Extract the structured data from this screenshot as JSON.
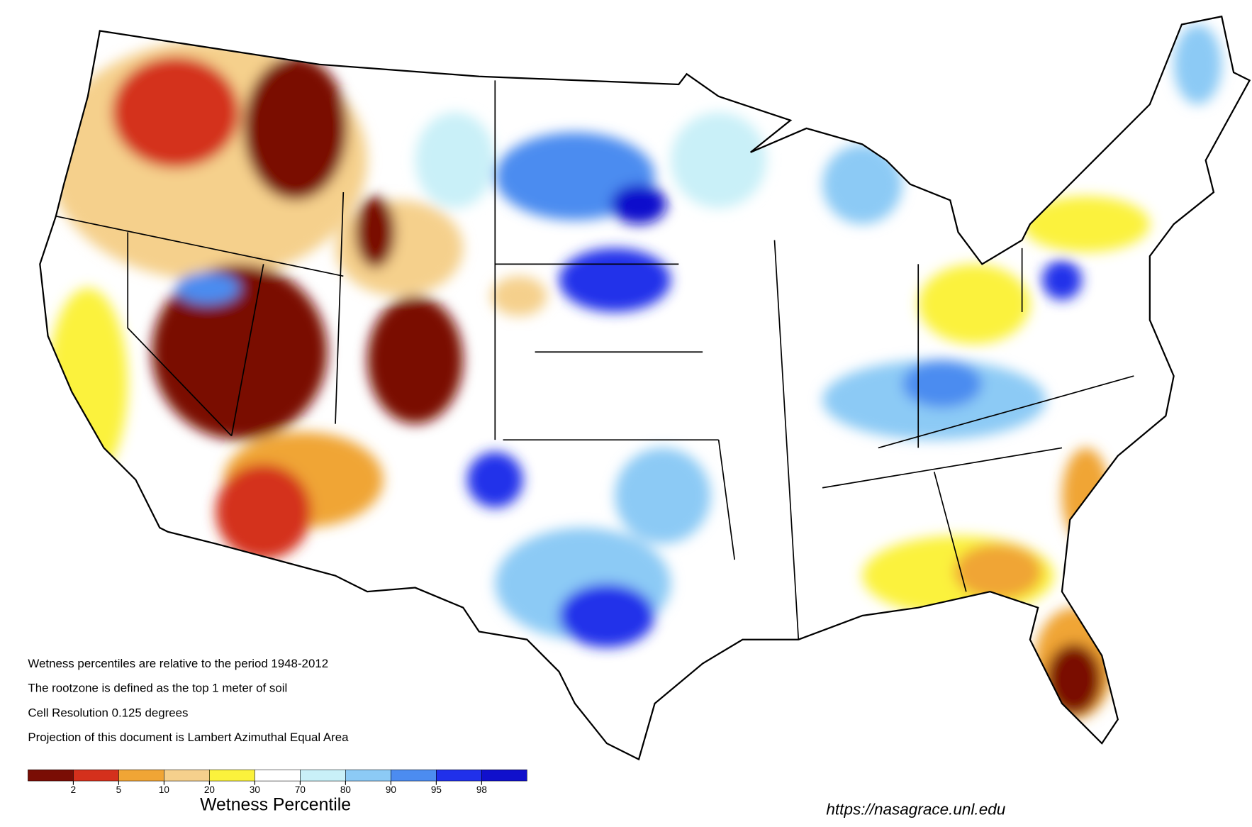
{
  "notes": [
    "Wetness percentiles are relative to the period 1948-2012",
    "The rootzone is defined as the top 1 meter of soil",
    "Cell Resolution 0.125 degrees",
    "Projection of this document is Lambert Azimuthal Equal Area"
  ],
  "legend": {
    "title": "Wetness Percentile",
    "colors": [
      "#7a0d05",
      "#d4301c",
      "#f0a535",
      "#f5d08c",
      "#fbf23c",
      "#ffffff",
      "#c9f0f8",
      "#8ccaf5",
      "#4c8cf0",
      "#2030ea",
      "#1010cc"
    ],
    "ticks": [
      2,
      5,
      10,
      20,
      30,
      70,
      80,
      90,
      95,
      98
    ]
  },
  "url": "https://nasagrace.unl.edu"
}
